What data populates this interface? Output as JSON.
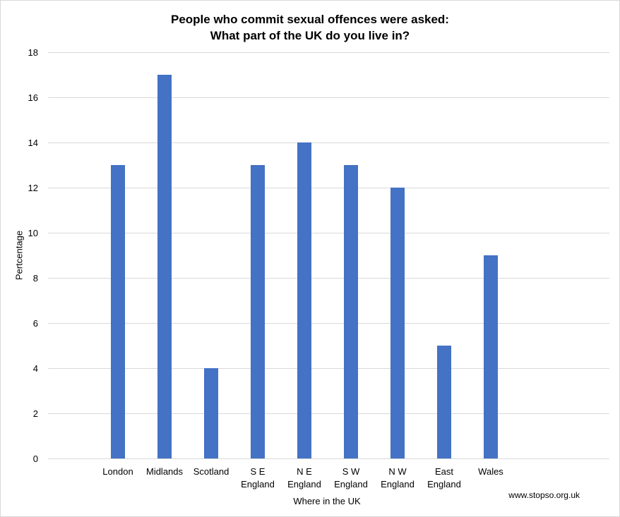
{
  "chart_data": {
    "type": "bar",
    "title": [
      "People who commit sexual offences were asked:",
      "What part of the UK do you live in?"
    ],
    "xlabel": "Where in the UK",
    "ylabel": "Pertcentage",
    "categories": [
      [
        "London"
      ],
      [
        "Midlands"
      ],
      [
        "Scotland"
      ],
      [
        "S E",
        "England"
      ],
      [
        "N E",
        "England"
      ],
      [
        "S W",
        "England"
      ],
      [
        "N W",
        "England"
      ],
      [
        "East",
        "England"
      ],
      [
        "Wales"
      ]
    ],
    "values": [
      13,
      17,
      4,
      13,
      14,
      13,
      12,
      5,
      9
    ],
    "ylim": [
      0,
      18
    ],
    "yticks": [
      0,
      2,
      4,
      6,
      8,
      10,
      12,
      14,
      16,
      18
    ],
    "grid": true,
    "bar_color": "#4472c4",
    "grid_color": "#d9d9d9"
  },
  "source": "www.stopso.org.uk"
}
